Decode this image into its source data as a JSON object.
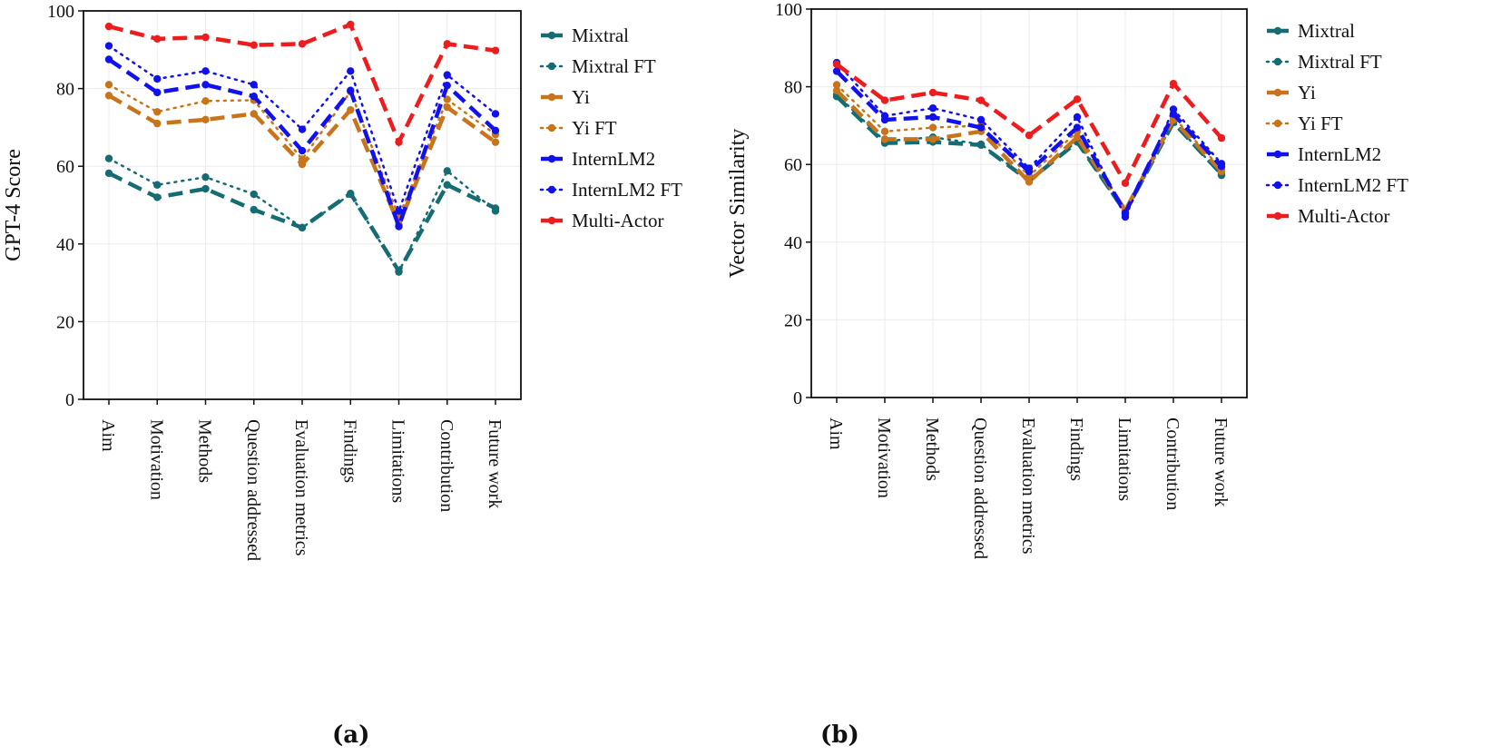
{
  "captions": {
    "a": "(a)",
    "b": "(b)"
  },
  "styles": {
    "Mixtral": {
      "color": "#156C73",
      "dash": "dash"
    },
    "Mixtral FT": {
      "color": "#156C73",
      "dash": "dot"
    },
    "Yi": {
      "color": "#C8741A",
      "dash": "dash"
    },
    "Yi FT": {
      "color": "#C8741A",
      "dash": "dot"
    },
    "InternLM2": {
      "color": "#1111EE",
      "dash": "dash"
    },
    "InternLM2 FT": {
      "color": "#1111EE",
      "dash": "dot"
    },
    "Multi-Actor": {
      "color": "#EE1C1C",
      "dash": "dash"
    }
  },
  "chart_data": [
    {
      "type": "line",
      "panel": "(a)",
      "ylabel": "GPT-4 Score",
      "xlabel": "",
      "ylim": [
        0,
        100
      ],
      "yticks": [
        0,
        20,
        40,
        60,
        80,
        100
      ],
      "grid": true,
      "legend": "right",
      "categories": [
        "Aim",
        "Motivation",
        "Methods",
        "Question addressed",
        "Evaluation metrics",
        "Findings",
        "Limitations",
        "Contribution",
        "Future work"
      ],
      "series": [
        {
          "name": "Mixtral",
          "values": [
            58.2,
            52.0,
            54.2,
            48.8,
            44.2,
            53.0,
            33.0,
            55.2,
            49.2
          ]
        },
        {
          "name": "Mixtral FT",
          "values": [
            62.0,
            55.2,
            57.2,
            52.8,
            44.2,
            52.8,
            32.8,
            58.8,
            48.5
          ]
        },
        {
          "name": "Yi",
          "values": [
            78.2,
            71.0,
            72.0,
            73.5,
            60.5,
            74.5,
            45.0,
            75.2,
            66.2
          ]
        },
        {
          "name": "Yi FT",
          "values": [
            81.0,
            74.0,
            76.8,
            77.0,
            61.8,
            79.2,
            47.0,
            77.2,
            68.2
          ]
        },
        {
          "name": "InternLM2",
          "values": [
            87.5,
            79.0,
            81.0,
            78.0,
            64.0,
            79.5,
            44.5,
            80.8,
            69.2
          ]
        },
        {
          "name": "InternLM2 FT",
          "values": [
            91.0,
            82.5,
            84.5,
            81.0,
            69.5,
            84.5,
            48.5,
            83.5,
            73.5
          ]
        },
        {
          "name": "Multi-Actor",
          "values": [
            96.0,
            92.8,
            93.2,
            91.2,
            91.5,
            96.5,
            66.2,
            91.5,
            89.8
          ]
        }
      ]
    },
    {
      "type": "line",
      "panel": "(b)",
      "ylabel": "Vector Similarity",
      "xlabel": "",
      "ylim": [
        0,
        100
      ],
      "yticks": [
        0,
        20,
        40,
        60,
        80,
        100
      ],
      "grid": true,
      "legend": "right",
      "categories": [
        "Aim",
        "Motivation",
        "Methods",
        "Question addressed",
        "Evaluation metrics",
        "Findings",
        "Limitations",
        "Contribution",
        "Future work"
      ],
      "series": [
        {
          "name": "Mixtral",
          "values": [
            77.5,
            65.5,
            65.8,
            65.0,
            55.8,
            65.8,
            47.8,
            70.8,
            57.5
          ]
        },
        {
          "name": "Mixtral FT",
          "values": [
            78.0,
            66.0,
            67.0,
            65.2,
            56.0,
            66.0,
            47.2,
            71.0,
            57.2
          ]
        },
        {
          "name": "Yi",
          "values": [
            79.0,
            66.5,
            66.5,
            68.5,
            55.5,
            67.0,
            48.2,
            71.5,
            58.2
          ]
        },
        {
          "name": "Yi FT",
          "values": [
            80.5,
            68.5,
            69.5,
            70.0,
            57.0,
            68.5,
            48.0,
            72.2,
            58.8
          ]
        },
        {
          "name": "InternLM2",
          "values": [
            84.0,
            71.5,
            72.2,
            69.5,
            58.2,
            69.5,
            47.5,
            73.0,
            59.5
          ]
        },
        {
          "name": "InternLM2 FT",
          "values": [
            86.2,
            72.5,
            74.5,
            71.5,
            59.0,
            72.2,
            46.5,
            74.2,
            60.2
          ]
        },
        {
          "name": "Multi-Actor",
          "values": [
            85.8,
            76.5,
            78.5,
            76.5,
            67.5,
            76.8,
            55.2,
            80.8,
            66.8
          ]
        }
      ]
    }
  ]
}
